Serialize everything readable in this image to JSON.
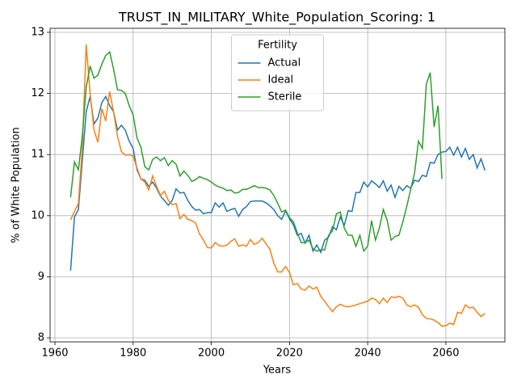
{
  "chart_data": {
    "type": "line",
    "title": "TRUST_IN_MILITARY_White_Population_Scoring: 1",
    "xlabel": "Years",
    "ylabel": "% of White Population",
    "legend_title": "Fertility",
    "legend": "upper center",
    "grid": true,
    "xlim": [
      1958.76,
      2075.1
    ],
    "ylim": [
      7.934,
      13.066
    ],
    "xticks": [
      1960,
      1980,
      2000,
      2020,
      2040,
      2060
    ],
    "yticks": [
      8,
      9,
      10,
      11,
      12,
      13
    ],
    "x": [
      1964,
      1965,
      1966,
      1967,
      1968,
      1969,
      1970,
      1971,
      1972,
      1973,
      1974,
      1975,
      1976,
      1977,
      1978,
      1979,
      1980,
      1981,
      1982,
      1983,
      1984,
      1985,
      1986,
      1987,
      1988,
      1989,
      1990,
      1991,
      1992,
      1993,
      1994,
      1995,
      1996,
      1997,
      1998,
      1999,
      2000,
      2001,
      2002,
      2003,
      2004,
      2005,
      2006,
      2007,
      2008,
      2009,
      2010,
      2011,
      2012,
      2013,
      2014,
      2015,
      2016,
      2017,
      2018,
      2019,
      2020,
      2021,
      2022,
      2023,
      2024,
      2025,
      2026,
      2027,
      2028,
      2029,
      2030,
      2031,
      2032,
      2033,
      2034,
      2035,
      2036,
      2037,
      2038,
      2039,
      2040,
      2041,
      2042,
      2043,
      2044,
      2045,
      2046,
      2047,
      2048,
      2049,
      2050,
      2051,
      2052,
      2053,
      2054,
      2055,
      2056,
      2057,
      2058,
      2059,
      2060,
      2061,
      2062,
      2063,
      2064,
      2065,
      2066,
      2067,
      2068,
      2069,
      2070
    ],
    "series": [
      {
        "name": "Actual",
        "color": "#1f77b4",
        "values": [
          9.1,
          9.98,
          10.1,
          10.9,
          11.7,
          11.95,
          11.5,
          11.6,
          11.85,
          11.95,
          11.8,
          11.7,
          11.4,
          11.48,
          11.4,
          11.22,
          11.1,
          10.75,
          10.6,
          10.58,
          10.48,
          10.55,
          10.45,
          10.32,
          10.25,
          10.17,
          10.25,
          10.44,
          10.37,
          10.38,
          10.25,
          10.15,
          10.09,
          10.1,
          10.03,
          10.05,
          10.05,
          10.21,
          10.14,
          10.21,
          10.07,
          10.1,
          10.12,
          9.99,
          10.1,
          10.15,
          10.23,
          10.24,
          10.24,
          10.24,
          10.21,
          10.16,
          10.1,
          10.0,
          9.94,
          10.08,
          9.95,
          9.85,
          9.68,
          9.71,
          9.55,
          9.68,
          9.42,
          9.52,
          9.4,
          9.6,
          9.65,
          9.82,
          9.77,
          9.98,
          9.84,
          10.08,
          10.07,
          10.38,
          10.38,
          10.55,
          10.47,
          10.57,
          10.52,
          10.46,
          10.57,
          10.4,
          10.5,
          10.3,
          10.48,
          10.41,
          10.49,
          10.45,
          10.58,
          10.56,
          10.66,
          10.64,
          10.87,
          10.86,
          11.0,
          11.04,
          11.05,
          11.12,
          10.99,
          11.12,
          10.96,
          11.1,
          10.92,
          11.0,
          10.78,
          10.93,
          10.74
        ]
      },
      {
        "name": "Ideal",
        "color": "#ff7f0e",
        "values": [
          9.93,
          10.07,
          10.2,
          11.1,
          12.8,
          12.0,
          11.4,
          11.2,
          11.75,
          11.55,
          12.03,
          11.7,
          11.3,
          11.05,
          10.99,
          11.0,
          10.97,
          10.78,
          10.6,
          10.55,
          10.42,
          10.65,
          10.48,
          10.33,
          10.4,
          10.25,
          10.18,
          10.2,
          9.95,
          10.02,
          9.94,
          9.92,
          9.88,
          9.7,
          9.6,
          9.48,
          9.47,
          9.56,
          9.51,
          9.5,
          9.52,
          9.58,
          9.62,
          9.5,
          9.52,
          9.5,
          9.61,
          9.53,
          9.56,
          9.63,
          9.54,
          9.45,
          9.22,
          9.08,
          9.08,
          9.17,
          9.07,
          8.87,
          8.89,
          8.8,
          8.78,
          8.85,
          8.8,
          8.83,
          8.68,
          8.6,
          8.51,
          8.43,
          8.51,
          8.55,
          8.52,
          8.51,
          8.52,
          8.54,
          8.56,
          8.58,
          8.6,
          8.65,
          8.63,
          8.56,
          8.65,
          8.58,
          8.67,
          8.66,
          8.68,
          8.65,
          8.54,
          8.51,
          8.54,
          8.5,
          8.38,
          8.32,
          8.31,
          8.29,
          8.25,
          8.19,
          8.2,
          8.24,
          8.22,
          8.42,
          8.4,
          8.54,
          8.49,
          8.5,
          8.42,
          8.35,
          8.4
        ]
      },
      {
        "name": "Sterile",
        "color": "#2ca02c",
        "values": [
          10.3,
          10.88,
          10.75,
          11.3,
          12.1,
          12.45,
          12.25,
          12.3,
          12.48,
          12.62,
          12.68,
          12.4,
          12.06,
          12.05,
          12.0,
          11.8,
          11.65,
          11.27,
          11.12,
          10.8,
          10.75,
          10.92,
          10.96,
          10.9,
          10.95,
          10.82,
          10.9,
          10.84,
          10.65,
          10.73,
          10.66,
          10.56,
          10.59,
          10.64,
          10.61,
          10.59,
          10.55,
          10.5,
          10.47,
          10.45,
          10.41,
          10.42,
          10.37,
          10.38,
          10.43,
          10.43,
          10.46,
          10.49,
          10.46,
          10.46,
          10.45,
          10.42,
          10.33,
          10.2,
          10.06,
          10.09,
          9.97,
          9.9,
          9.72,
          9.56,
          9.56,
          9.6,
          9.46,
          9.42,
          9.44,
          9.44,
          9.68,
          9.75,
          10.03,
          10.06,
          9.8,
          9.68,
          9.68,
          9.5,
          9.68,
          9.42,
          9.5,
          9.92,
          9.6,
          9.8,
          10.1,
          9.92,
          9.6,
          9.66,
          9.68,
          9.9,
          10.15,
          10.43,
          10.7,
          11.22,
          11.1,
          12.15,
          12.34,
          11.45,
          11.8,
          10.6,
          null,
          null,
          null,
          null,
          null,
          null,
          null,
          null,
          null,
          null,
          null
        ]
      }
    ]
  }
}
